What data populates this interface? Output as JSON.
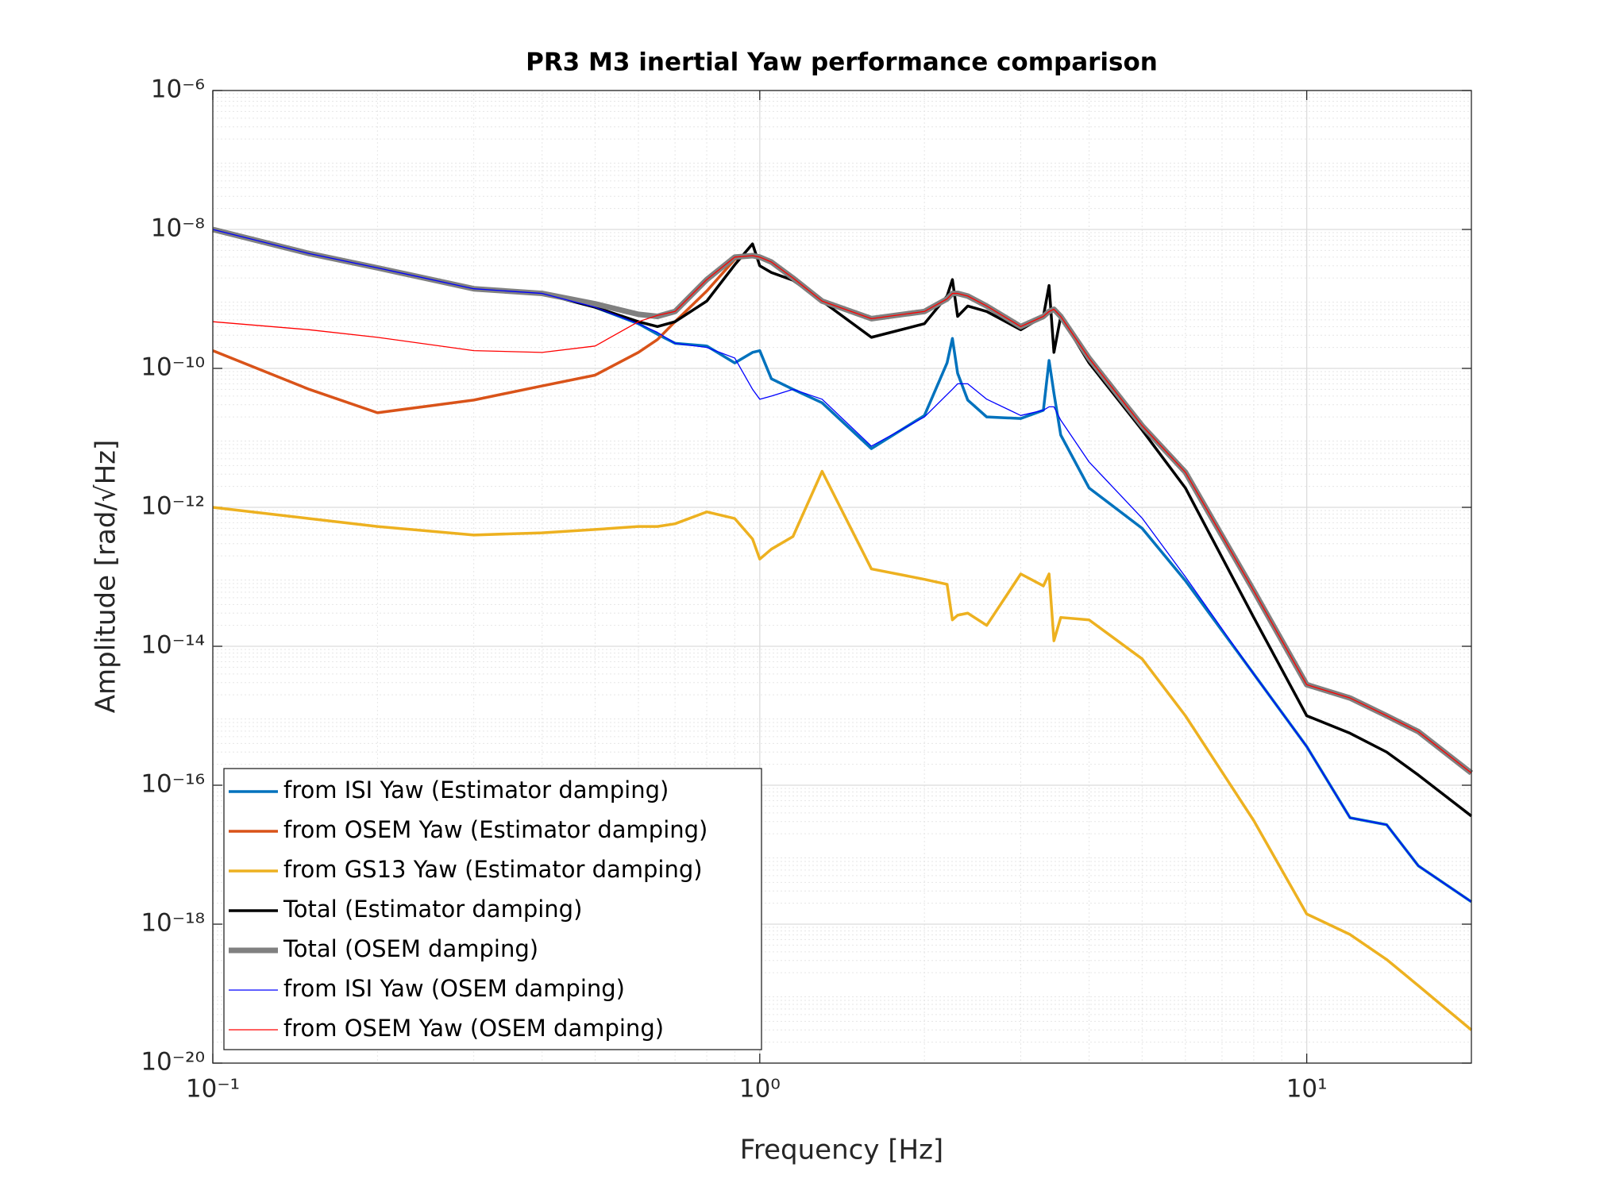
{
  "chart_data": {
    "type": "line",
    "title": "PR3 M3 inertial Yaw performance comparison",
    "x_label": "Frequency [Hz]",
    "y_label": "Amplitude [rad/√Hz]",
    "x_scale": "log",
    "y_scale": "log",
    "grid": true,
    "minor_grid": true,
    "legend_location": "southwest",
    "xlim": [
      0.1,
      20
    ],
    "ylim": [
      1e-20,
      1e-06
    ],
    "xticks": [
      {
        "value": 0.1,
        "label": "10⁻¹"
      },
      {
        "value": 1,
        "label": "10⁰"
      },
      {
        "value": 10,
        "label": "10¹"
      }
    ],
    "yticks": [
      {
        "value": 1e-20,
        "label": "10⁻²⁰"
      },
      {
        "value": 1e-18,
        "label": "10⁻¹⁸"
      },
      {
        "value": 1e-16,
        "label": "10⁻¹⁶"
      },
      {
        "value": 1e-14,
        "label": "10⁻¹⁴"
      },
      {
        "value": 1e-12,
        "label": "10⁻¹²"
      },
      {
        "value": 1e-10,
        "label": "10⁻¹⁰"
      },
      {
        "value": 1e-08,
        "label": "10⁻⁸"
      },
      {
        "value": 1e-06,
        "label": "10⁻⁶"
      }
    ],
    "x": [
      0.1,
      0.15,
      0.2,
      0.3,
      0.4,
      0.5,
      0.6,
      0.65,
      0.7,
      0.8,
      0.9,
      0.97,
      1.0,
      1.05,
      1.15,
      1.3,
      1.6,
      2.0,
      2.2,
      2.25,
      2.3,
      2.4,
      2.6,
      3.0,
      3.3,
      3.38,
      3.45,
      3.55,
      4,
      5,
      6,
      8,
      10,
      12,
      14,
      16,
      20
    ],
    "series": [
      {
        "name": "from ISI Yaw (Estimator damping)",
        "color": "#0072BD",
        "width": 3.5,
        "values": [
          1e-08,
          4.5e-09,
          2.8e-09,
          1.4e-09,
          1.2e-09,
          7.6e-10,
          4.4e-10,
          3.1e-10,
          2.3e-10,
          2.1e-10,
          1.2e-10,
          1.7e-10,
          1.8e-10,
          7.1e-11,
          5e-11,
          3.2e-11,
          7e-12,
          2.1e-11,
          1.2e-10,
          2.7e-10,
          8.5e-11,
          3.5e-11,
          2e-11,
          1.9e-11,
          2.5e-11,
          1.3e-10,
          4.4e-11,
          1.1e-11,
          1.9e-12,
          5e-13,
          8.8e-14,
          4e-15,
          3.6e-16,
          3.4e-17,
          2.7e-17,
          6.9e-18,
          2.1e-18
        ]
      },
      {
        "name": "from OSEM Yaw (Estimator damping)",
        "color": "#D95319",
        "width": 3.5,
        "values": [
          1.8e-10,
          5e-11,
          2.3e-11,
          3.5e-11,
          5.6e-11,
          8e-11,
          1.7e-10,
          2.6e-10,
          4.7e-10,
          1.3e-09,
          3.7e-09,
          4.2e-09,
          4e-09,
          3.4e-09,
          2e-09,
          9.3e-10,
          5.2e-10,
          6.6e-10,
          1e-09,
          1.2e-09,
          1.2e-09,
          1.1e-09,
          7.9e-10,
          4e-10,
          5.6e-10,
          6.6e-10,
          7.1e-10,
          5.6e-10,
          1.4e-10,
          1.5e-11,
          3.2e-12,
          6.3e-14,
          2.8e-15,
          1.8e-15,
          1e-15,
          5.9e-16,
          1.5e-16
        ]
      },
      {
        "name": "from GS13 Yaw (Estimator damping)",
        "color": "#EDB120",
        "width": 3.5,
        "values": [
          1e-12,
          6.9e-13,
          5.3e-13,
          4e-13,
          4.3e-13,
          4.8e-13,
          5.3e-13,
          5.3e-13,
          5.8e-13,
          8.6e-13,
          6.9e-13,
          3.5e-13,
          1.8e-13,
          2.5e-13,
          3.8e-13,
          3.3e-12,
          1.3e-13,
          9.2e-14,
          7.8e-14,
          2.4e-14,
          2.8e-14,
          3e-14,
          2e-14,
          1.1e-13,
          7.4e-14,
          1.1e-13,
          1.2e-14,
          2.6e-14,
          2.4e-14,
          6.6e-15,
          1e-15,
          3.1e-17,
          1.4e-18,
          7.1e-19,
          3.1e-19,
          1.3e-19,
          3e-20
        ]
      },
      {
        "name": "Total (Estimator damping)",
        "color": "#000000",
        "width": 3.5,
        "values": [
          1e-08,
          4.5e-09,
          2.8e-09,
          1.4e-09,
          1.2e-09,
          7.6e-10,
          4.7e-10,
          4e-10,
          4.7e-10,
          9.3e-10,
          3.1e-09,
          6.2e-09,
          3e-09,
          2.4e-09,
          1.86e-09,
          9.3e-10,
          2.8e-10,
          4.4e-10,
          1.1e-09,
          1.9e-09,
          5.6e-10,
          7.9e-10,
          6.6e-10,
          3.6e-10,
          5.6e-10,
          1.56e-09,
          1.7e-10,
          5.6e-10,
          1.2e-10,
          1.3e-11,
          1.9e-12,
          2.6e-14,
          1e-15,
          5.6e-16,
          3e-16,
          1.4e-16,
          3.6e-17
        ]
      },
      {
        "name": "Total (OSEM damping)",
        "color": "#808080",
        "width": 7,
        "values": [
          1e-08,
          4.5e-09,
          2.8e-09,
          1.4e-09,
          1.2e-09,
          8.5e-10,
          6e-10,
          5.6e-10,
          6.6e-10,
          1.9e-09,
          4e-09,
          4.2e-09,
          4e-09,
          3.4e-09,
          2e-09,
          9.3e-10,
          5.2e-10,
          6.6e-10,
          1e-09,
          1.2e-09,
          1.2e-09,
          1.1e-09,
          7.9e-10,
          4e-10,
          5.6e-10,
          6.6e-10,
          7.1e-10,
          5.6e-10,
          1.4e-10,
          1.5e-11,
          3.2e-12,
          6.3e-14,
          2.8e-15,
          1.8e-15,
          1e-15,
          5.9e-16,
          1.5e-16
        ]
      },
      {
        "name": "from ISI Yaw (OSEM damping)",
        "color": "#0000FF",
        "width": 1.3,
        "values": [
          1e-08,
          4.5e-09,
          2.8e-09,
          1.4e-09,
          1.2e-09,
          7.6e-10,
          4.4e-10,
          3.3e-10,
          2.3e-10,
          2e-10,
          1.41e-10,
          5e-11,
          3.6e-11,
          4e-11,
          5e-11,
          3.6e-11,
          7.6e-12,
          2e-11,
          4.2e-11,
          5e-11,
          6e-11,
          6e-11,
          3.6e-11,
          2.1e-11,
          2.5e-11,
          2.8e-11,
          2.8e-11,
          1.8e-11,
          4.5e-12,
          7e-13,
          1e-13,
          4e-15,
          3.6e-16,
          3.4e-17,
          2.7e-17,
          6.9e-18,
          2.1e-18
        ]
      },
      {
        "name": "from OSEM Yaw (OSEM damping)",
        "color": "#FF0000",
        "width": 1.3,
        "values": [
          4.7e-10,
          3.6e-10,
          2.8e-10,
          1.8e-10,
          1.7e-10,
          2.1e-10,
          4.7e-10,
          5.8e-10,
          6.6e-10,
          1.9e-09,
          4e-09,
          4.2e-09,
          4e-09,
          3.4e-09,
          2e-09,
          9.3e-10,
          5.2e-10,
          6.6e-10,
          1e-09,
          1.2e-09,
          1.2e-09,
          1.1e-09,
          7.9e-10,
          4e-10,
          5.6e-10,
          6.6e-10,
          7.1e-10,
          5.6e-10,
          1.4e-10,
          1.5e-11,
          3.2e-12,
          6.3e-14,
          2.8e-15,
          1.8e-15,
          1e-15,
          5.9e-16,
          1.5e-16
        ]
      }
    ]
  }
}
